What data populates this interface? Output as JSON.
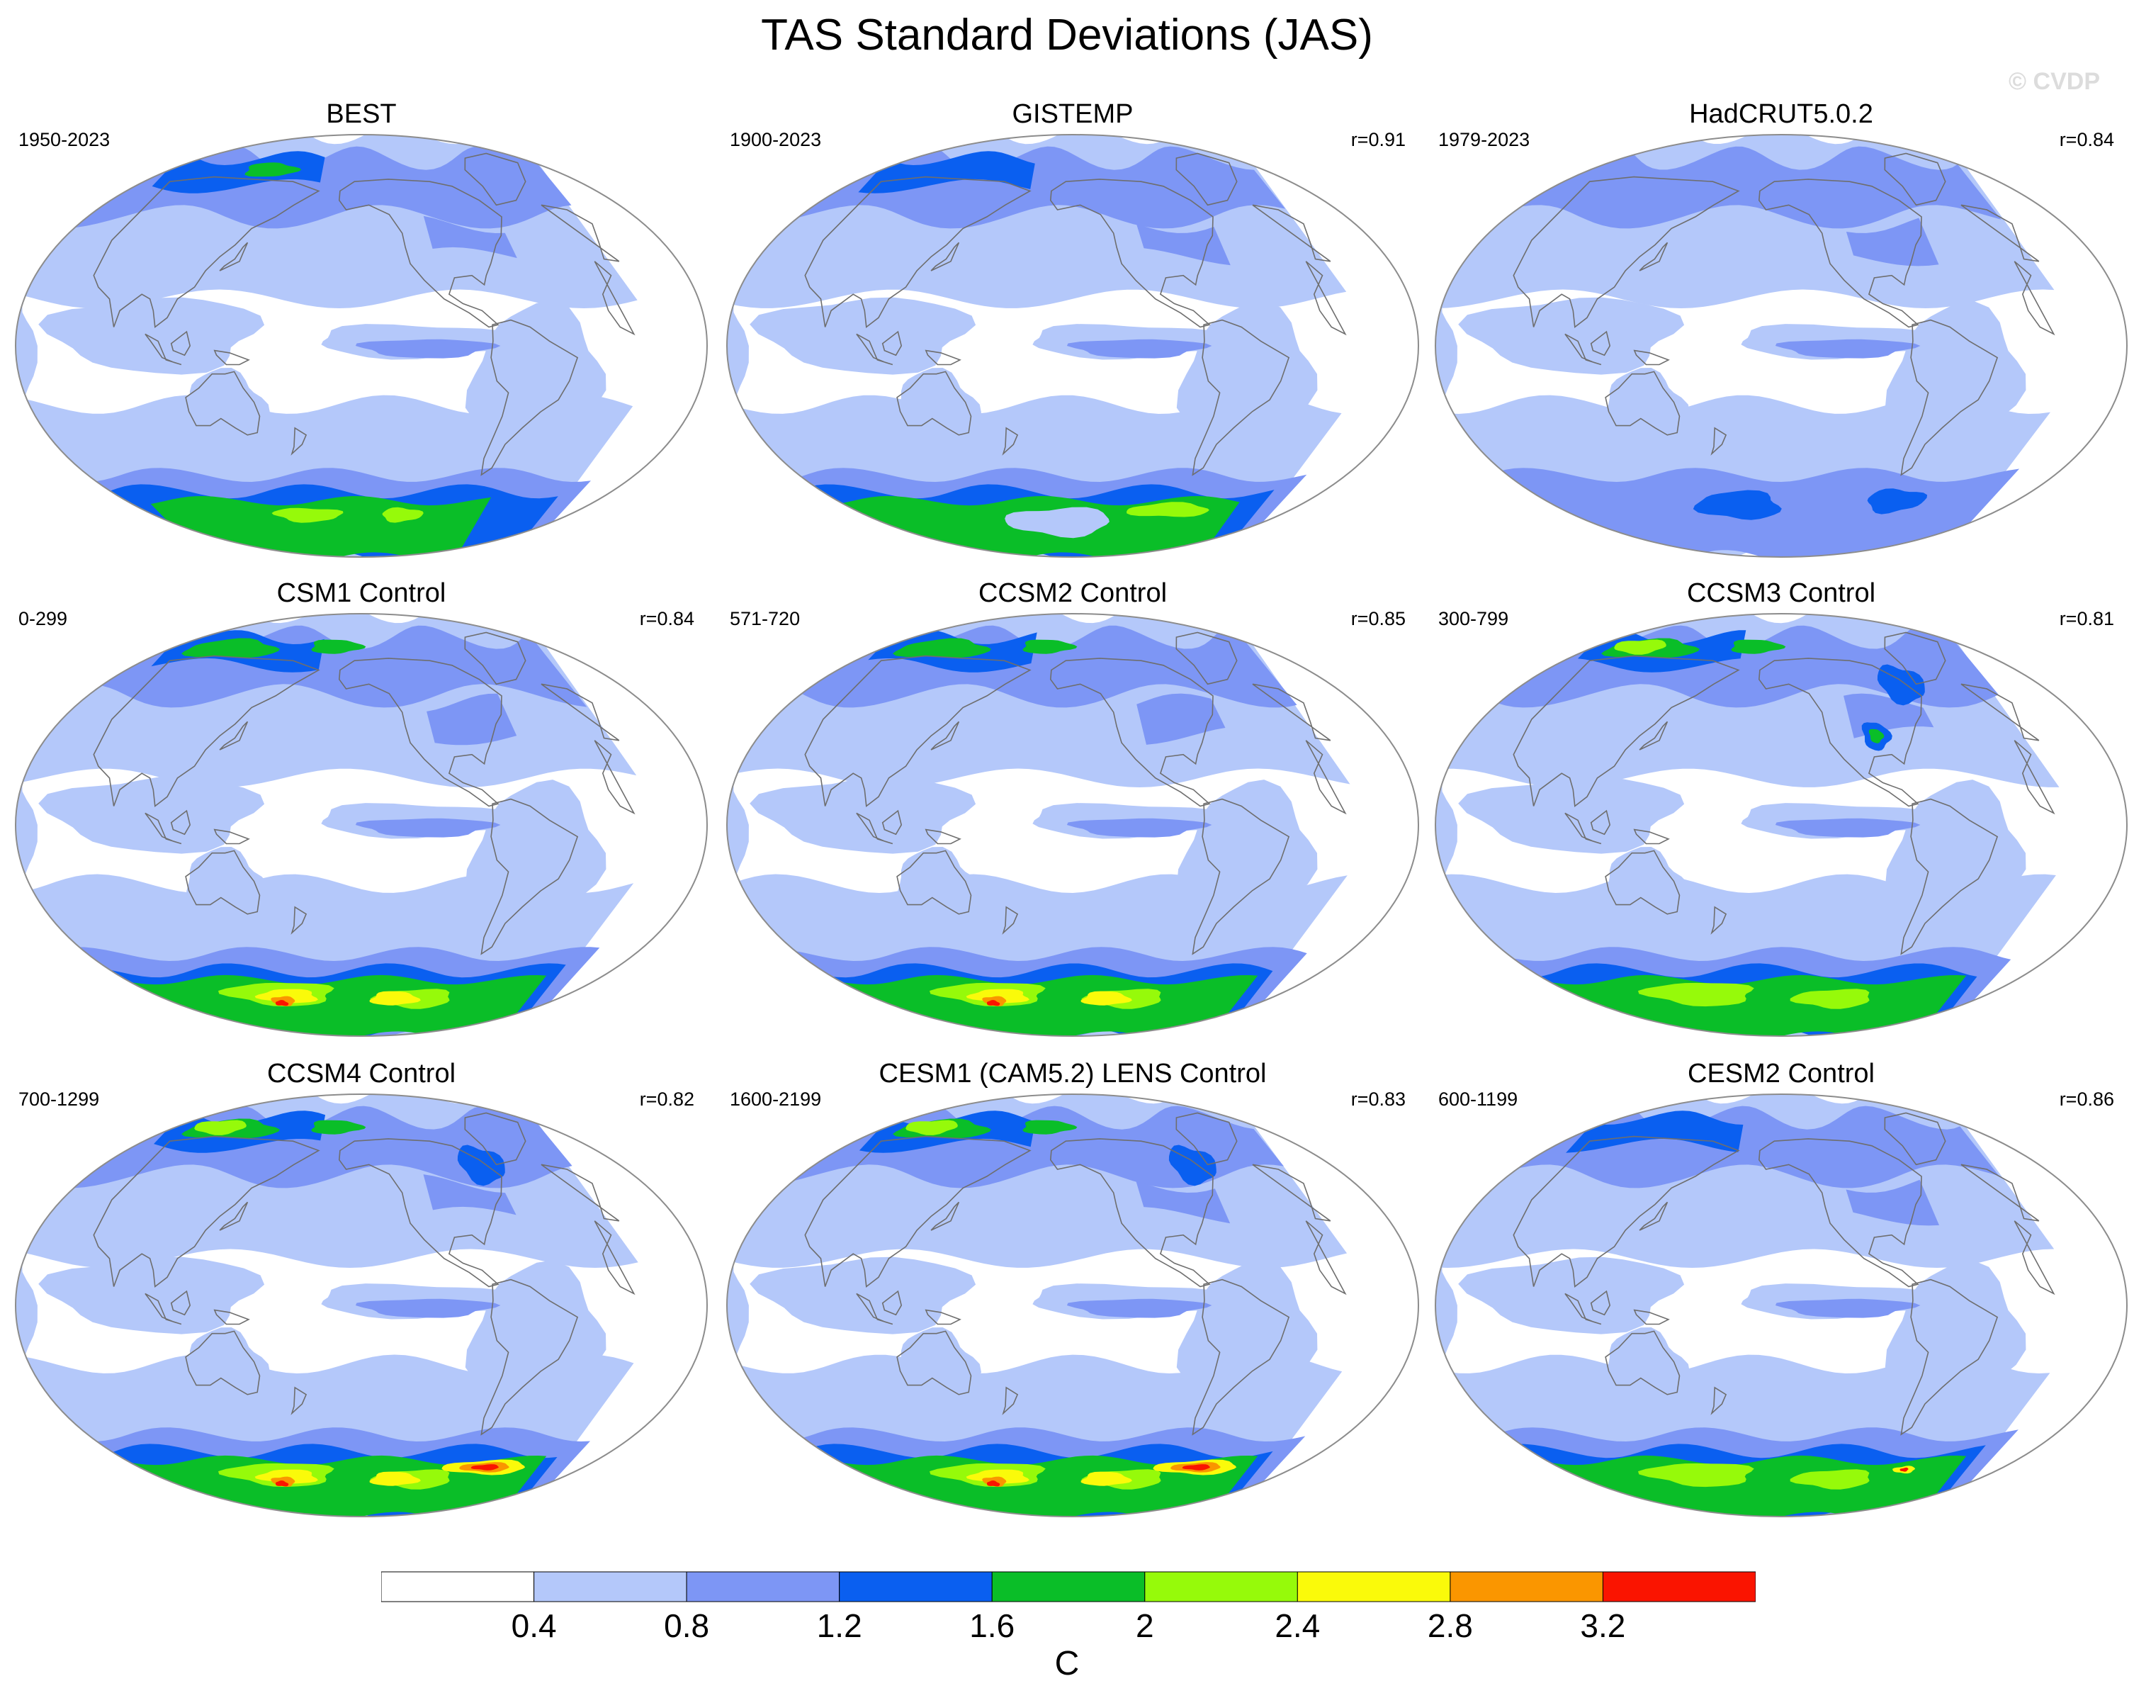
{
  "figure": {
    "title": "TAS Standard Deviations (JAS)",
    "watermark": "© CVDP"
  },
  "panels": [
    {
      "title": "BEST",
      "period": "1950-2023",
      "corr": ""
    },
    {
      "title": "GISTEMP",
      "period": "1900-2023",
      "corr": "r=0.91"
    },
    {
      "title": "HadCRUT5.0.2",
      "period": "1979-2023",
      "corr": "r=0.84"
    },
    {
      "title": "CSM1 Control",
      "period": "0-299",
      "corr": "r=0.84"
    },
    {
      "title": "CCSM2 Control",
      "period": "571-720",
      "corr": "r=0.85"
    },
    {
      "title": "CCSM3 Control",
      "period": "300-799",
      "corr": "r=0.81"
    },
    {
      "title": "CCSM4 Control",
      "period": "700-1299",
      "corr": "r=0.82"
    },
    {
      "title": "CESM1 (CAM5.2) LENS Control",
      "period": "1600-2199",
      "corr": "r=0.83"
    },
    {
      "title": "CESM2 Control",
      "period": "600-1199",
      "corr": "r=0.86"
    }
  ],
  "colorbar": {
    "unit": "C",
    "tick_labels": [
      "0.4",
      "0.8",
      "1.2",
      "1.6",
      "2",
      "2.4",
      "2.8",
      "3.2"
    ],
    "colors": [
      "#ffffff",
      "#b4c8fa",
      "#7d96f5",
      "#0a5ff0",
      "#0abe28",
      "#96fa0a",
      "#fafa0a",
      "#fa9600",
      "#fa1400"
    ]
  },
  "colors": {
    "coast": "#6e6e6e",
    "outline": "#8c8c8c"
  }
}
